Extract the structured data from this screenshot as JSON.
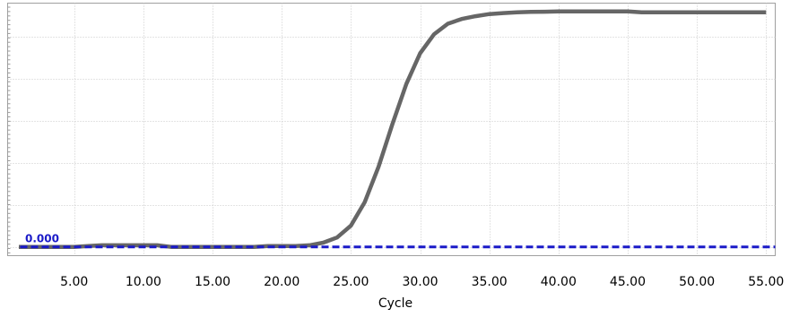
{
  "chart_data": {
    "type": "line",
    "xlabel": "Cycle",
    "ylabel": "",
    "xlim": [
      1,
      55.5
    ],
    "ylim": [
      -0.02,
      1.0
    ],
    "x_ticks": [
      5,
      10,
      15,
      20,
      25,
      30,
      35,
      40,
      45,
      50,
      55
    ],
    "x_tick_labels": [
      "5.00",
      "10.00",
      "15.00",
      "20.00",
      "25.00",
      "30.00",
      "35.00",
      "40.00",
      "45.00",
      "50.00",
      "55.00"
    ],
    "y_gridlines": [
      0,
      0.178,
      0.356,
      0.534,
      0.712,
      0.89
    ],
    "grid": true,
    "series": [
      {
        "color": "#666666",
        "x": [
          1,
          2,
          3,
          4,
          5,
          6,
          7,
          8,
          9,
          10,
          11,
          12,
          13,
          14,
          15,
          16,
          17,
          18,
          19,
          20,
          21,
          22,
          23,
          24,
          25,
          26,
          27,
          28,
          29,
          30,
          31,
          32,
          33,
          34,
          35,
          36,
          37,
          38,
          39,
          40,
          41,
          42,
          43,
          44,
          45,
          46,
          47,
          48,
          49,
          50,
          51,
          52,
          53,
          54,
          55
        ],
        "y": [
          0.0,
          0.0,
          0.0,
          0.0,
          0.0,
          0.004,
          0.007,
          0.007,
          0.007,
          0.007,
          0.007,
          0.0,
          0.0,
          0.0,
          0.0,
          0.0,
          0.0,
          0.0,
          0.004,
          0.004,
          0.004,
          0.007,
          0.018,
          0.04,
          0.09,
          0.19,
          0.34,
          0.52,
          0.69,
          0.82,
          0.9,
          0.945,
          0.965,
          0.977,
          0.986,
          0.99,
          0.993,
          0.995,
          0.996,
          0.997,
          0.997,
          0.997,
          0.997,
          0.997,
          0.997,
          0.993,
          0.993,
          0.993,
          0.993,
          0.993,
          0.993,
          0.993,
          0.993,
          0.993,
          0.993
        ]
      }
    ],
    "threshold": {
      "value": 0.0,
      "label": "0.000",
      "color": "#1a1ac8"
    }
  }
}
